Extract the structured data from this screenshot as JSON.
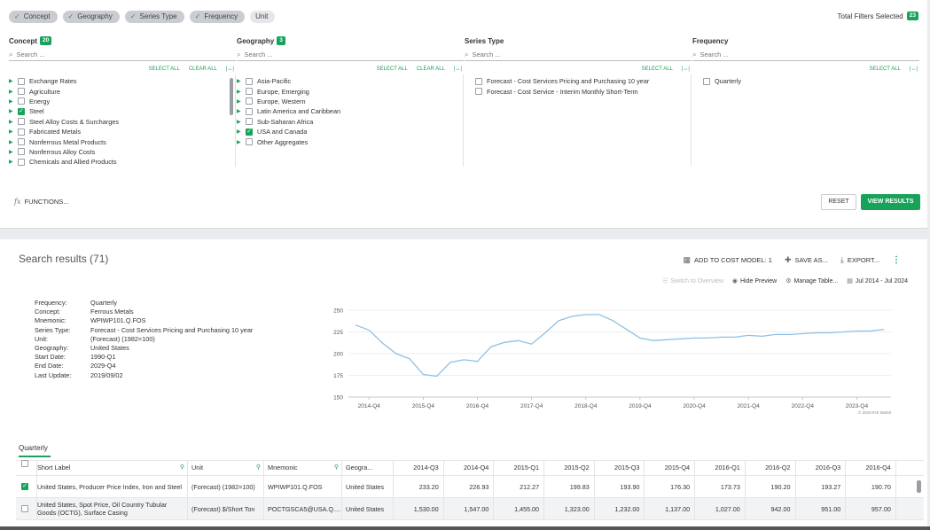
{
  "filter_chips": [
    "Concept",
    "Geography",
    "Series Type",
    "Frequency"
  ],
  "unit_chip": "Unit",
  "total_filters_label": "Total Filters Selected",
  "total_filters_count": "23",
  "search_placeholder": "Search ...",
  "select_all": "SELECT ALL",
  "clear_all": "CLEAR ALL",
  "collapse_icon": "|↔|",
  "concept": {
    "title": "Concept",
    "count": "20",
    "items": [
      {
        "label": "Exchange Rates",
        "checked": false
      },
      {
        "label": "Agriculture",
        "checked": false
      },
      {
        "label": "Energy",
        "checked": false
      },
      {
        "label": "Steel",
        "checked": true
      },
      {
        "label": "Steel Alloy Costs & Surcharges",
        "checked": false
      },
      {
        "label": "Fabricated Metals",
        "checked": false
      },
      {
        "label": "Nonferrous Metal Products",
        "checked": false
      },
      {
        "label": "Nonferrous Alloy Costs",
        "checked": false
      },
      {
        "label": "Chemicals and Allied Products",
        "checked": false
      }
    ]
  },
  "geography": {
    "title": "Geography",
    "count": "3",
    "items": [
      {
        "label": "Asia-Pacific",
        "checked": false
      },
      {
        "label": "Europe, Emerging",
        "checked": false
      },
      {
        "label": "Europe, Western",
        "checked": false
      },
      {
        "label": "Latin America and Caribbean",
        "checked": false
      },
      {
        "label": "Sub-Saharan Africa",
        "checked": false
      },
      {
        "label": "USA and Canada",
        "checked": true
      },
      {
        "label": "Other Aggregates",
        "checked": false
      }
    ]
  },
  "series_type": {
    "title": "Series Type",
    "items": [
      {
        "label": "Forecast - Cost Services Pricing and Purchasing 10 year"
      },
      {
        "label": "Forecast - Cost Service - Interim Monthly Short-Term"
      }
    ]
  },
  "frequency": {
    "title": "Frequency",
    "items": [
      {
        "label": "Quarterly"
      }
    ]
  },
  "functions_label": "FUNCTIONS...",
  "reset_label": "RESET",
  "view_results_label": "VIEW RESULTS",
  "results": {
    "title": "Search results (71)",
    "add_to_cost_model": "ADD TO COST MODEL: 1",
    "save_as": "SAVE AS...",
    "export": "EXPORT...",
    "switch_overview": "Switch to Overview",
    "hide_preview": "Hide Preview",
    "manage_table": "Manage Table...",
    "date_range": "Jul 2014 - Jul 2024"
  },
  "meta": [
    {
      "k": "Frequency:",
      "v": "Quarterly"
    },
    {
      "k": "Concept:",
      "v": "Ferrous Metals"
    },
    {
      "k": "Mnemonic:",
      "v": "WPIWP101.Q.FOS"
    },
    {
      "k": "Series Type:",
      "v": "Forecast - Cost Services Pricing and Purchasing 10 year"
    },
    {
      "k": "Unit:",
      "v": "(Forecast) (1982=100)"
    },
    {
      "k": "Geography:",
      "v": "United States"
    },
    {
      "k": "Start Date:",
      "v": "1990-Q1"
    },
    {
      "k": "End Date:",
      "v": "2029-Q4"
    },
    {
      "k": "Last Update:",
      "v": "2019/09/02"
    }
  ],
  "chart_data": {
    "type": "line",
    "ylim": [
      150,
      250
    ],
    "yticks": [
      "250",
      "225",
      "200",
      "175",
      "150"
    ],
    "xticks": [
      "2014-Q4",
      "2015-Q4",
      "2016-Q4",
      "2017-Q4",
      "2018-Q4",
      "2019-Q4",
      "2020-Q4",
      "2021-Q4",
      "2022-Q4",
      "2023-Q4"
    ],
    "copyright": "© 2019 IHS Markit",
    "series": [
      {
        "x": [
          "2014-Q3",
          "2014-Q4",
          "2015-Q1",
          "2015-Q2",
          "2015-Q3",
          "2015-Q4",
          "2016-Q1",
          "2016-Q2",
          "2016-Q3",
          "2016-Q4",
          "2017-Q1",
          "2017-Q2",
          "2017-Q3",
          "2017-Q4",
          "2018-Q1",
          "2018-Q2",
          "2018-Q3",
          "2018-Q4",
          "2019-Q1",
          "2019-Q2",
          "2019-Q3",
          "2019-Q4",
          "2020-Q1",
          "2020-Q2",
          "2020-Q3",
          "2020-Q4",
          "2021-Q1",
          "2021-Q2",
          "2021-Q3",
          "2021-Q4",
          "2022-Q1",
          "2022-Q2",
          "2022-Q3",
          "2022-Q4",
          "2023-Q1",
          "2023-Q2",
          "2023-Q3",
          "2023-Q4",
          "2024-Q1",
          "2024-Q2"
        ],
        "values": [
          233,
          227,
          212,
          200,
          194,
          176,
          174,
          190,
          193,
          191,
          208,
          213,
          215,
          211,
          224,
          238,
          243,
          245,
          245,
          238,
          228,
          218,
          215,
          216,
          217,
          218,
          218,
          219,
          219,
          221,
          220,
          222,
          222,
          223,
          224,
          224,
          225,
          226,
          226,
          228
        ]
      }
    ]
  },
  "tab_label": "Quarterly",
  "table": {
    "headers": [
      "Short Label",
      "Unit",
      "Mnemonic",
      "Geogra...",
      "2014-Q3",
      "2014-Q4",
      "2015-Q1",
      "2015-Q2",
      "2015-Q3",
      "2015-Q4",
      "2016-Q1",
      "2016-Q2",
      "2016-Q3",
      "2016-Q4"
    ],
    "rows": [
      {
        "checked": true,
        "label": "United States, Producer Price Index, Iron and Steel",
        "unit": "(Forecast) (1982=100)",
        "mnemonic": "WPIWP101.Q.FOS",
        "geo": "United States",
        "values": [
          "233.20",
          "226.93",
          "212.27",
          "199.83",
          "193.90",
          "176.30",
          "173.73",
          "190.20",
          "193.27",
          "190.70"
        ]
      },
      {
        "checked": false,
        "label": "United States, Spot Price, Oil Country Tubular Goods (OCTG), Surface Casing",
        "unit": "(Forecast) $/Short Ton",
        "mnemonic": "POCTGSCA5@USA.Q....",
        "geo": "United States",
        "values": [
          "1,530.00",
          "1,547.00",
          "1,455.00",
          "1,323.00",
          "1,232.00",
          "1,137.00",
          "1,027.00",
          "942.00",
          "951.00",
          "957.00"
        ]
      }
    ]
  }
}
